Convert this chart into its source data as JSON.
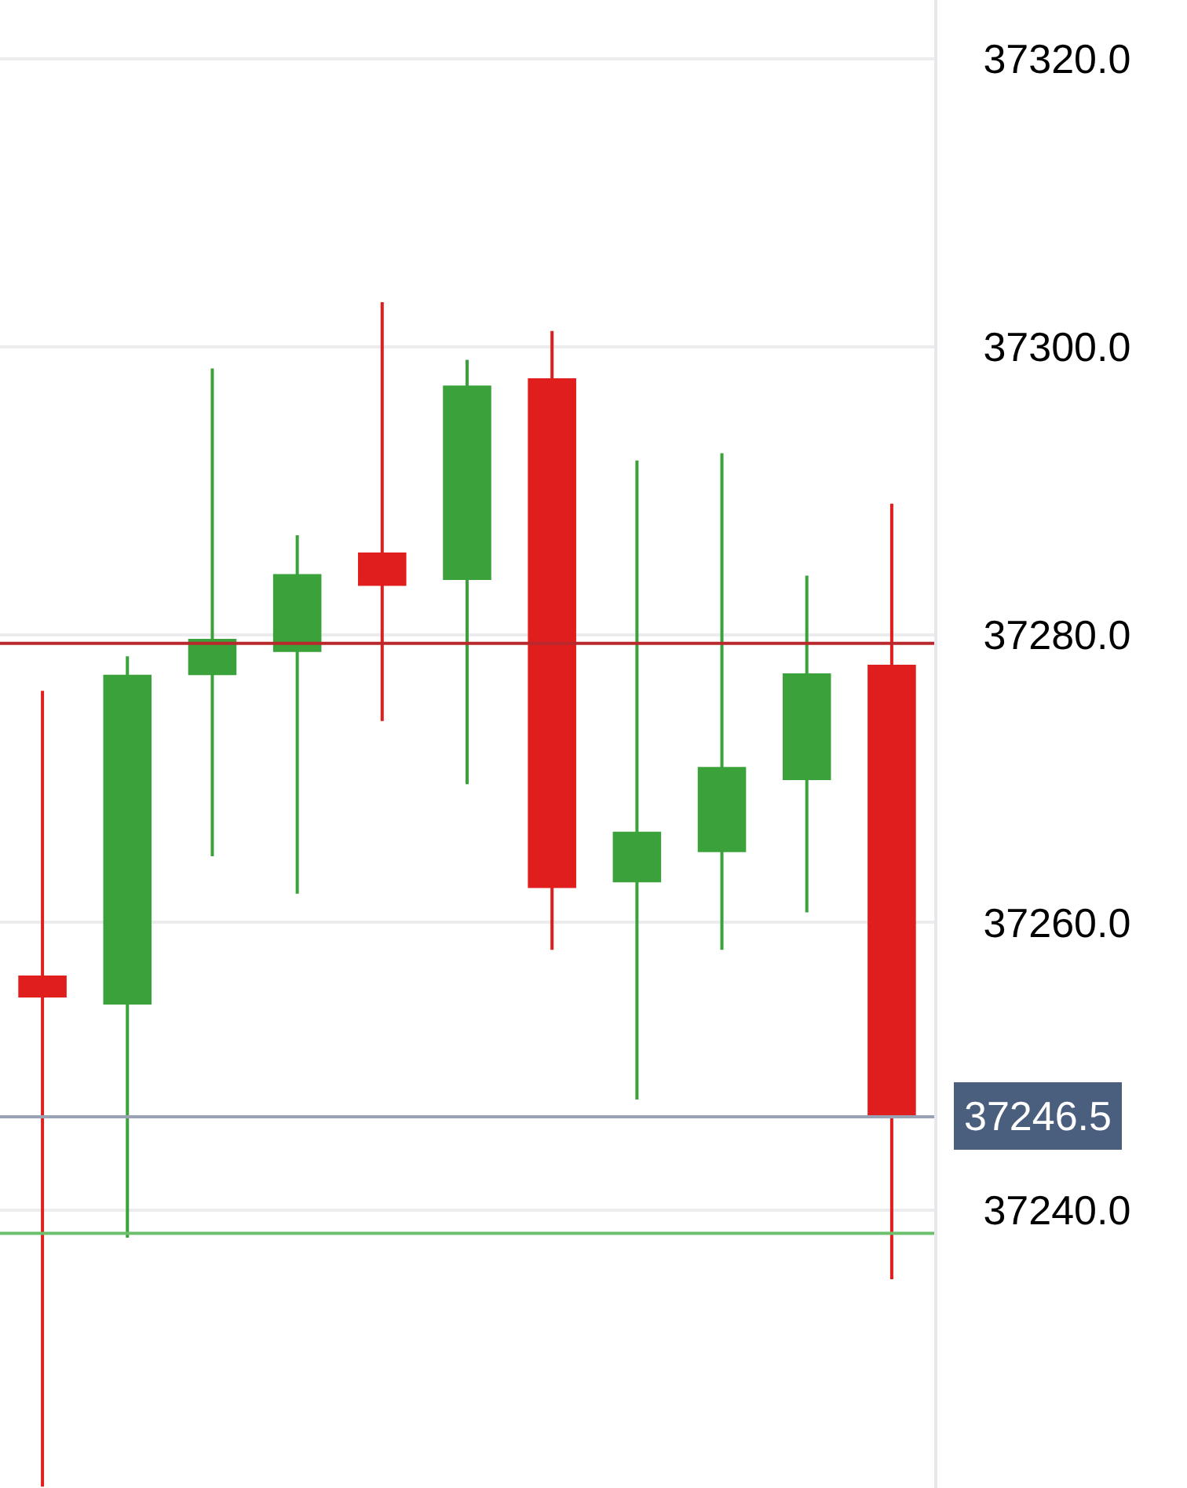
{
  "chart_data": {
    "type": "candlestick",
    "categories": [
      null,
      null,
      null,
      null,
      null,
      null,
      null,
      null,
      null,
      null,
      null
    ],
    "ohlc": [
      [
        37256.2,
        37276.1,
        37220.8,
        37254.9
      ],
      [
        37254.4,
        37278.5,
        37238.1,
        37277.1
      ],
      [
        37277.3,
        37298.5,
        37264.6,
        37279.6
      ],
      [
        37278.9,
        37286.9,
        37262.0,
        37284.1
      ],
      [
        37285.6,
        37303.1,
        37274.0,
        37283.5
      ],
      [
        37283.9,
        37299.1,
        37269.6,
        37297.2
      ],
      [
        37297.7,
        37301.1,
        37258.1,
        37262.5
      ],
      [
        37262.9,
        37292.1,
        37247.7,
        37266.2
      ],
      [
        37265.0,
        37292.6,
        37258.1,
        37270.7
      ],
      [
        37270.0,
        37284.1,
        37260.7,
        37277.2
      ],
      [
        37277.8,
        37289.1,
        37235.2,
        37246.5
      ]
    ],
    "colors": [
      "#e01e1e",
      "#3ba23b",
      "#3ba23b",
      "#3ba23b",
      "#e01e1e",
      "#3ba23b",
      "#e01e1e",
      "#3ba23b",
      "#3ba23b",
      "#3ba23b",
      "#e01e1e"
    ],
    "ylim": [
      37220.7,
      37324.1
    ],
    "yticks": [
      {
        "value": 37240,
        "label": "37240.0"
      },
      {
        "value": 37260,
        "label": "37260.0"
      },
      {
        "value": 37280,
        "label": "37280.0"
      },
      {
        "value": 37300,
        "label": "37300.0"
      },
      {
        "value": 37320,
        "label": "37320.0"
      }
    ],
    "tick_labels": "y",
    "grid": "y",
    "ref_lines": [
      {
        "axis": "y",
        "value": 37279.4,
        "color": "#b8282c",
        "line_style": "solid"
      },
      {
        "axis": "y",
        "value": 37246.5,
        "color": "#9aa3b5",
        "label": "37246.5"
      },
      {
        "axis": "y",
        "value": 37238.4,
        "color": "#6cc06c"
      }
    ]
  }
}
